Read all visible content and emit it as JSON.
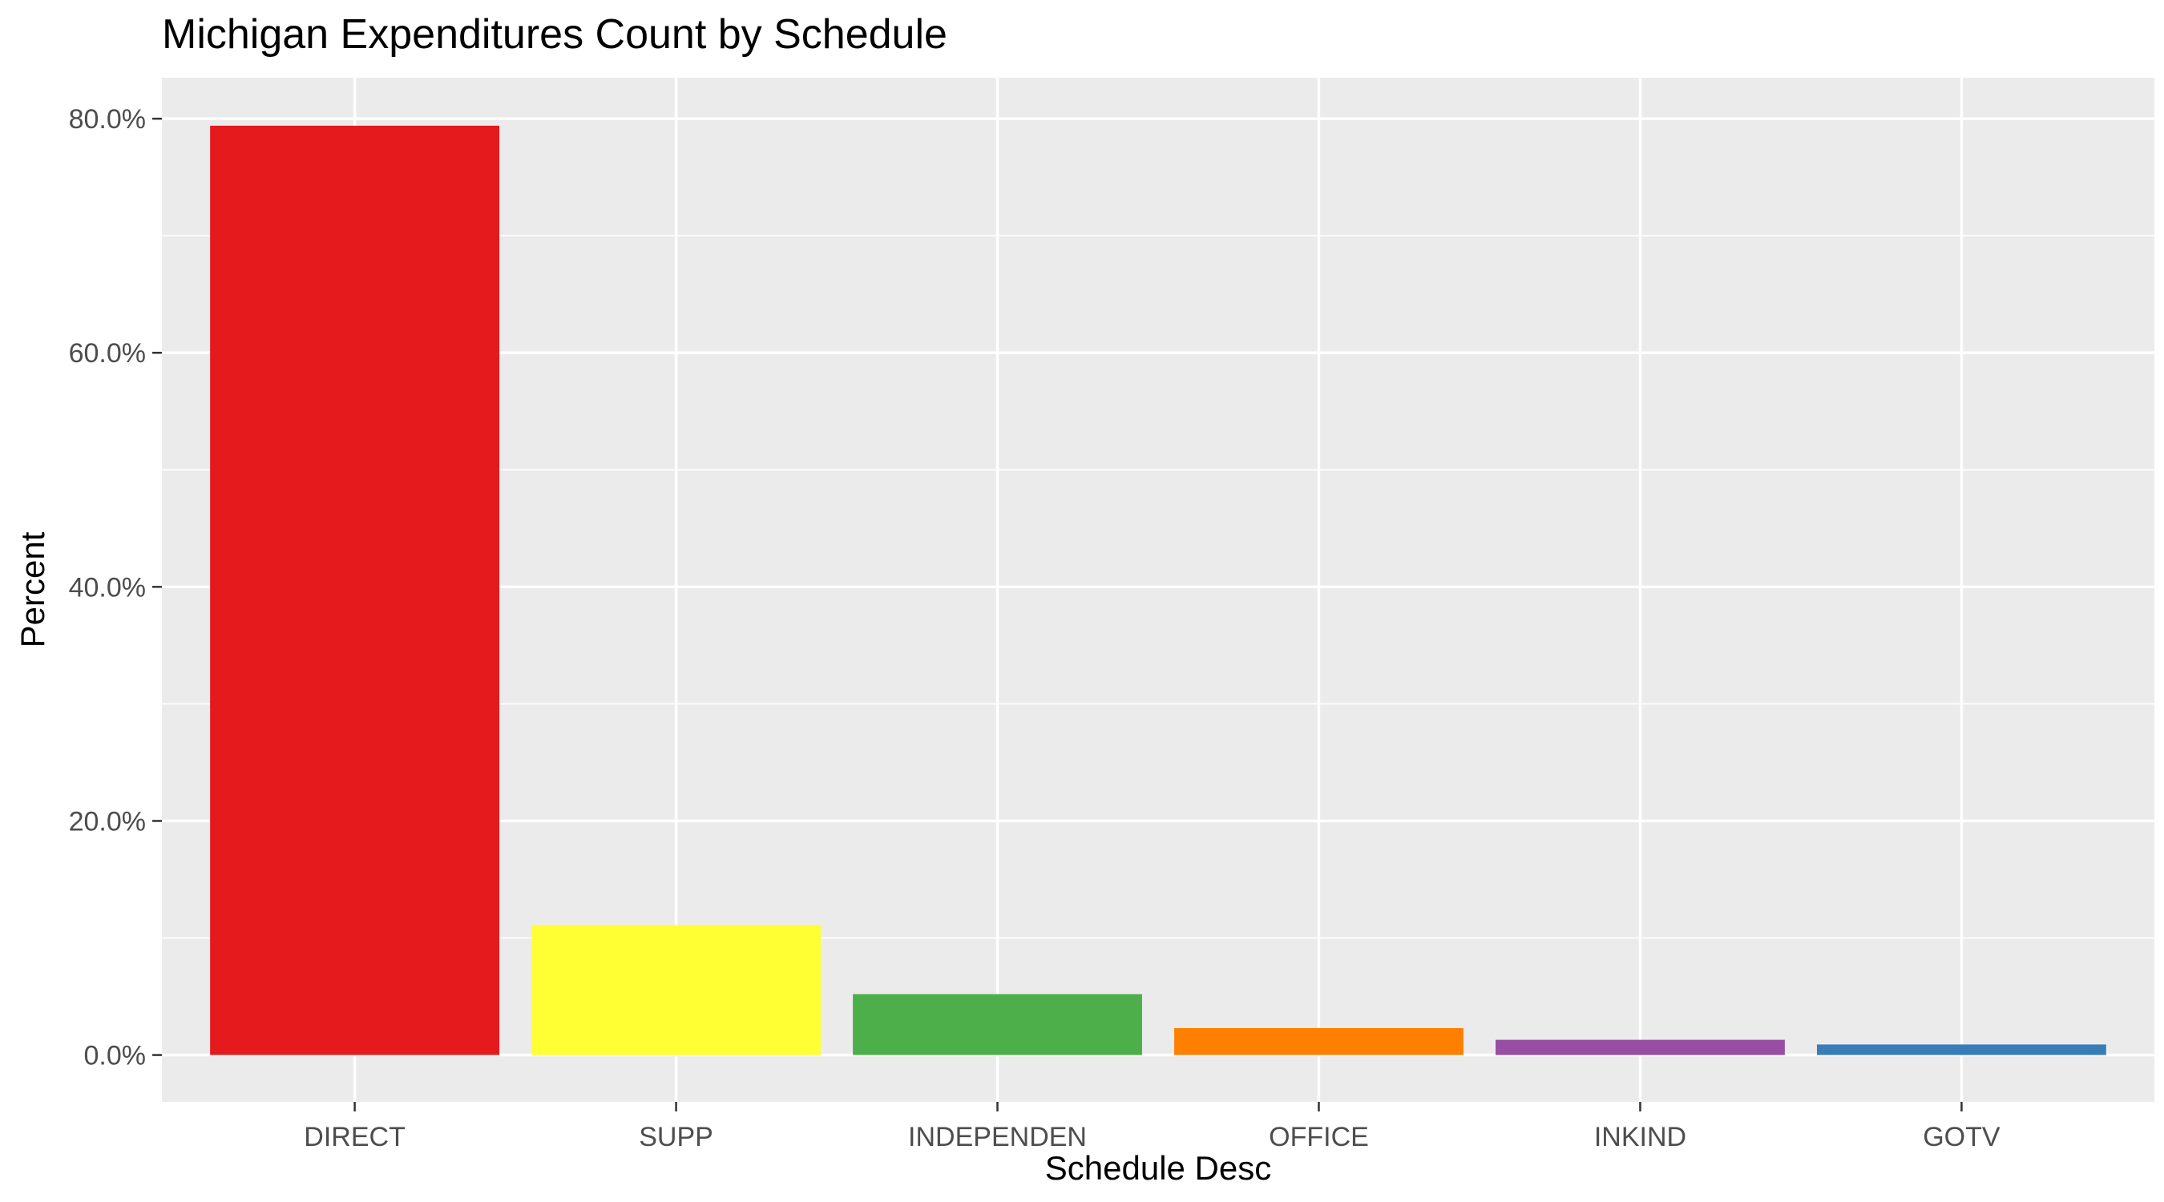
{
  "chart_data": {
    "type": "bar",
    "title": "Michigan Expenditures Count by Schedule",
    "xlabel": "Schedule Desc",
    "ylabel": "Percent",
    "categories": [
      "DIRECT",
      "SUPP",
      "INDEPENDEN",
      "OFFICE",
      "INKIND",
      "GOTV"
    ],
    "values": [
      79.4,
      11.1,
      5.2,
      2.3,
      1.3,
      0.9
    ],
    "colors": [
      "#E41A1C",
      "#FFFF33",
      "#4DAF4A",
      "#FF7F00",
      "#984EA3",
      "#377EB8"
    ],
    "ylim": [
      -4,
      83.5
    ],
    "y_ticks": [
      0,
      20,
      40,
      60,
      80
    ],
    "y_tick_labels": [
      "0.0%",
      "20.0%",
      "40.0%",
      "60.0%",
      "80.0%"
    ],
    "grid": true,
    "legend": "none",
    "panel_background": "#EBEBEB"
  }
}
